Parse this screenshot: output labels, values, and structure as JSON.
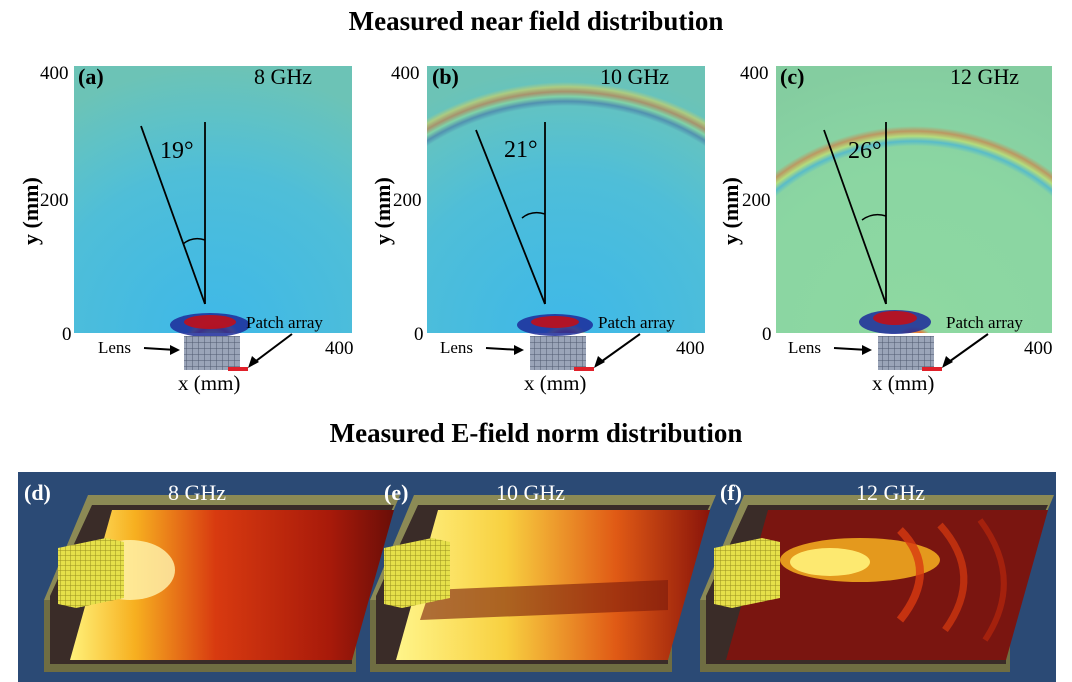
{
  "headings": {
    "near_field": "Measured near field distribution",
    "e_field": "Measured E-field norm distribution"
  },
  "near_field_panels": [
    {
      "tag": "(a)",
      "freq": "8 GHz",
      "angle": "19°",
      "angle_deg": 19
    },
    {
      "tag": "(b)",
      "freq": "10 GHz",
      "angle": "21°",
      "angle_deg": 21
    },
    {
      "tag": "(c)",
      "freq": "12 GHz",
      "angle": "26°",
      "angle_deg": 26
    }
  ],
  "axes": {
    "y_label": "y (mm)",
    "x_label": "x (mm)",
    "y_max": "400",
    "y_mid": "200",
    "y_min": "0",
    "x_max": "400",
    "lens_label": "Lens",
    "patch_label": "Patch array"
  },
  "e_field_panels": [
    {
      "tag": "(d)",
      "freq": "8 GHz"
    },
    {
      "tag": "(e)",
      "freq": "10 GHz"
    },
    {
      "tag": "(f)",
      "freq": "12 GHz"
    }
  ],
  "colors": {
    "background_blue": "#2b4a75",
    "tray": "#8c8a55",
    "lens_yellow": "#e6e04a"
  }
}
